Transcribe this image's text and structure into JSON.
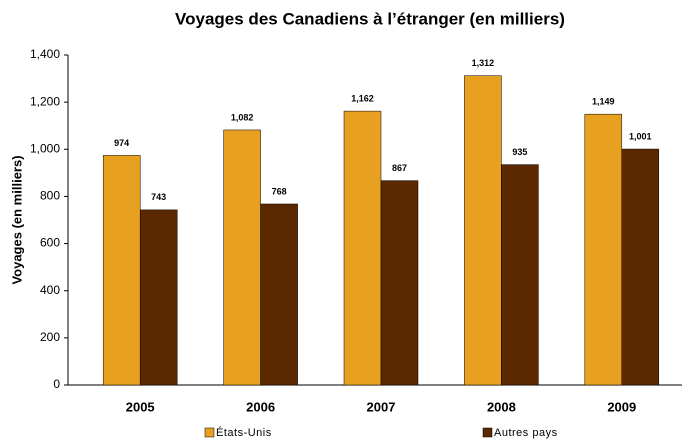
{
  "chart_data": {
    "type": "bar",
    "title": "Voyages des Canadiens à l’étranger (en milliers)",
    "y_label": "Voyages (en milliers)",
    "categories": [
      "2005",
      "2006",
      "2007",
      "2008",
      "2009"
    ],
    "series": [
      {
        "name": "États-Unis",
        "color": "#e8a020",
        "values": [
          974,
          1082,
          1162,
          1312,
          1149
        ],
        "value_labels": [
          "974",
          "1,082",
          "1,162",
          "1,312",
          "1,149"
        ]
      },
      {
        "name": "Autres pays",
        "color": "#5c2800",
        "values": [
          743,
          768,
          867,
          935,
          1001
        ],
        "value_labels": [
          "743",
          "768",
          "867",
          "935",
          "1,001"
        ]
      }
    ],
    "ylim": [
      0,
      1400
    ],
    "yticks": [
      0,
      200,
      400,
      600,
      800,
      {
        "value": 1000,
        "label": "1,000"
      },
      {
        "value": 1200,
        "label": "1,200"
      },
      {
        "value": 1400,
        "label": "1,400"
      }
    ],
    "grid": false,
    "legend": "bottom"
  }
}
